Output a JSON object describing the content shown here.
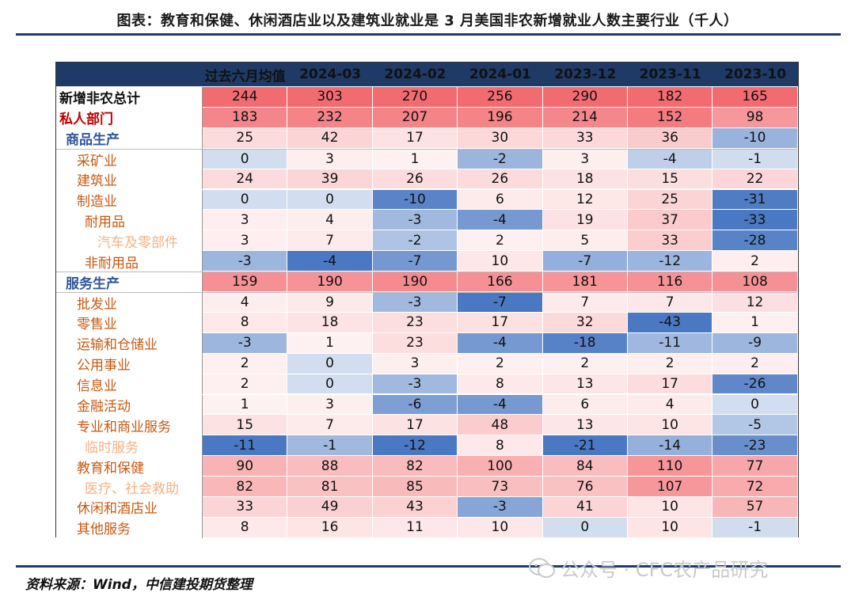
{
  "title": "图表：教育和保健、休闲酒店业以及建筑业就业是 3 月美国非农新增就业人数主要行业（千人）",
  "source": "资料来源：Wind，中信建投期货整理",
  "watermark": "公众号 · CFC农产品研究",
  "colors": {
    "header_bg": "#1f3a66",
    "rule": "#1f3d6b",
    "red_label": "#c00000",
    "blue_label": "#2f5597",
    "orange_label": "#c55a11",
    "light_orange_label": "#f4b183",
    "positive_scale": "#f26b70",
    "negative_scale": "#4a78c2"
  },
  "chart_data": {
    "type": "table",
    "columns": [
      "",
      "过去六月均值",
      "2024-03",
      "2024-02",
      "2024-01",
      "2023-12",
      "2023-11",
      "2023-10"
    ],
    "rows": [
      {
        "label": "新增非农总计",
        "level": 0,
        "style": "black",
        "values": [
          244,
          303,
          270,
          256,
          290,
          182,
          165
        ]
      },
      {
        "label": "私人部门",
        "level": 0,
        "style": "red",
        "values": [
          183,
          232,
          207,
          196,
          214,
          152,
          98
        ]
      },
      {
        "label": "商品生产",
        "level": 1,
        "style": "blue",
        "values": [
          25,
          42,
          17,
          30,
          33,
          36,
          -10
        ]
      },
      {
        "label": "采矿业",
        "level": 2,
        "style": "orange",
        "values": [
          0,
          3,
          1,
          -2,
          3,
          -4,
          -1
        ]
      },
      {
        "label": "建筑业",
        "level": 2,
        "style": "orange",
        "values": [
          24,
          39,
          26,
          26,
          18,
          15,
          22
        ]
      },
      {
        "label": "制造业",
        "level": 2,
        "style": "orange",
        "values": [
          0,
          0,
          -10,
          6,
          12,
          25,
          -31
        ]
      },
      {
        "label": "耐用品",
        "level": 3,
        "style": "orange",
        "values": [
          3,
          4,
          -3,
          -4,
          19,
          37,
          -33
        ]
      },
      {
        "label": "汽车及零部件",
        "level": 4,
        "style": "lightorange",
        "values": [
          3,
          7,
          -2,
          2,
          5,
          33,
          -28
        ]
      },
      {
        "label": "非耐用品",
        "level": 3,
        "style": "orange",
        "values": [
          -3,
          -4,
          -7,
          10,
          -7,
          -12,
          2
        ]
      },
      {
        "label": "服务生产",
        "level": 1,
        "style": "blue",
        "values": [
          159,
          190,
          190,
          166,
          181,
          116,
          108
        ]
      },
      {
        "label": "批发业",
        "level": 2,
        "style": "orange",
        "values": [
          4,
          9,
          -3,
          -7,
          7,
          7,
          12
        ]
      },
      {
        "label": "零售业",
        "level": 2,
        "style": "orange",
        "values": [
          8,
          18,
          23,
          17,
          32,
          -43,
          1
        ]
      },
      {
        "label": "运输和仓储业",
        "level": 2,
        "style": "orange",
        "values": [
          -3,
          1,
          23,
          -4,
          -18,
          -11,
          -9
        ]
      },
      {
        "label": "公用事业",
        "level": 2,
        "style": "orange",
        "values": [
          2,
          0,
          3,
          2,
          2,
          2,
          2
        ]
      },
      {
        "label": "信息业",
        "level": 2,
        "style": "orange",
        "values": [
          2,
          0,
          -3,
          8,
          13,
          17,
          -26
        ]
      },
      {
        "label": "金融活动",
        "level": 2,
        "style": "orange",
        "values": [
          1,
          3,
          -6,
          -4,
          6,
          4,
          0
        ]
      },
      {
        "label": "专业和商业服务",
        "level": 2,
        "style": "orange",
        "values": [
          15,
          7,
          17,
          48,
          13,
          10,
          -5
        ]
      },
      {
        "label": "临时服务",
        "level": 3,
        "style": "lightorange",
        "values": [
          -11,
          -1,
          -12,
          8,
          -21,
          -14,
          -23
        ]
      },
      {
        "label": "教育和保健",
        "level": 2,
        "style": "orange",
        "values": [
          90,
          88,
          82,
          100,
          84,
          110,
          77
        ]
      },
      {
        "label": "医疗、社会救助",
        "level": 3,
        "style": "lightorange",
        "values": [
          82,
          81,
          85,
          73,
          76,
          107,
          72
        ]
      },
      {
        "label": "休闲和酒店业",
        "level": 2,
        "style": "orange",
        "values": [
          33,
          49,
          43,
          -3,
          41,
          10,
          57
        ]
      },
      {
        "label": "其他服务",
        "level": 2,
        "style": "orange",
        "values": [
          8,
          16,
          11,
          10,
          0,
          10,
          -1
        ]
      }
    ]
  }
}
